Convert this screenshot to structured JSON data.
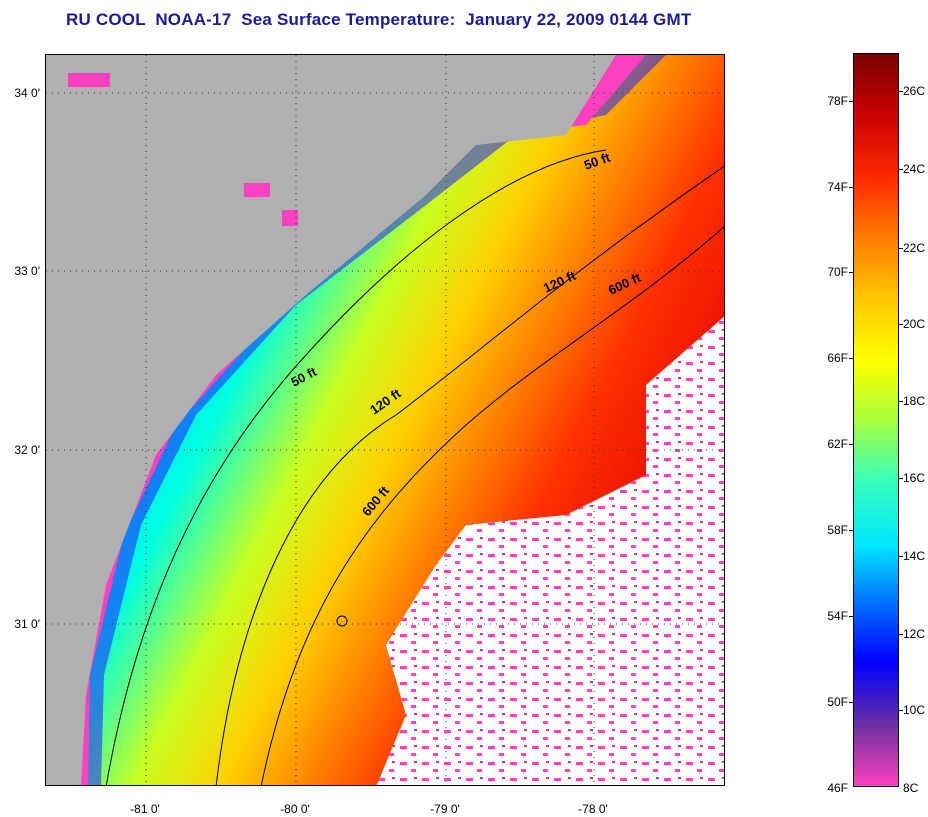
{
  "title": "RU COOL  NOAA-17  Sea Surface Temperature:  January 22, 2009 0144 GMT",
  "axes": {
    "lat_labels": [
      {
        "value": 34,
        "label": "34 0'"
      },
      {
        "value": 33,
        "label": "33 0'"
      },
      {
        "value": 32,
        "label": "32 0'"
      },
      {
        "value": 31,
        "label": "31 0'"
      }
    ],
    "lon_labels": [
      {
        "value": -81,
        "label": "-81 0'"
      },
      {
        "value": -80,
        "label": "-80 0'"
      },
      {
        "value": -79,
        "label": "-79 0'"
      },
      {
        "value": -78,
        "label": "-78 0'"
      }
    ]
  },
  "isobaths": [
    {
      "label": "50 ft"
    },
    {
      "label": "50 ft"
    },
    {
      "label": "120 ft"
    },
    {
      "label": "120 ft"
    },
    {
      "label": "600 ft"
    },
    {
      "label": "600 ft"
    }
  ],
  "colorbar": {
    "fahrenheit": [
      "78F",
      "74F",
      "70F",
      "66F",
      "62F",
      "58F",
      "54F",
      "50F",
      "46F"
    ],
    "celsius": [
      "26C",
      "24C",
      "22C",
      "20C",
      "18C",
      "16C",
      "14C",
      "12C",
      "10C",
      "8C"
    ],
    "colors": [
      "#7a0000",
      "#c80000",
      "#ff2a00",
      "#ff7a00",
      "#ffc400",
      "#ffff00",
      "#a8ff3a",
      "#3affb8",
      "#00e8ff",
      "#0070ff",
      "#0000ff",
      "#7030a0",
      "#ff40c0"
    ]
  },
  "colors": {
    "land": "#b0b0b0",
    "no_data": "#ffffff",
    "title": "#1a1aa0"
  }
}
